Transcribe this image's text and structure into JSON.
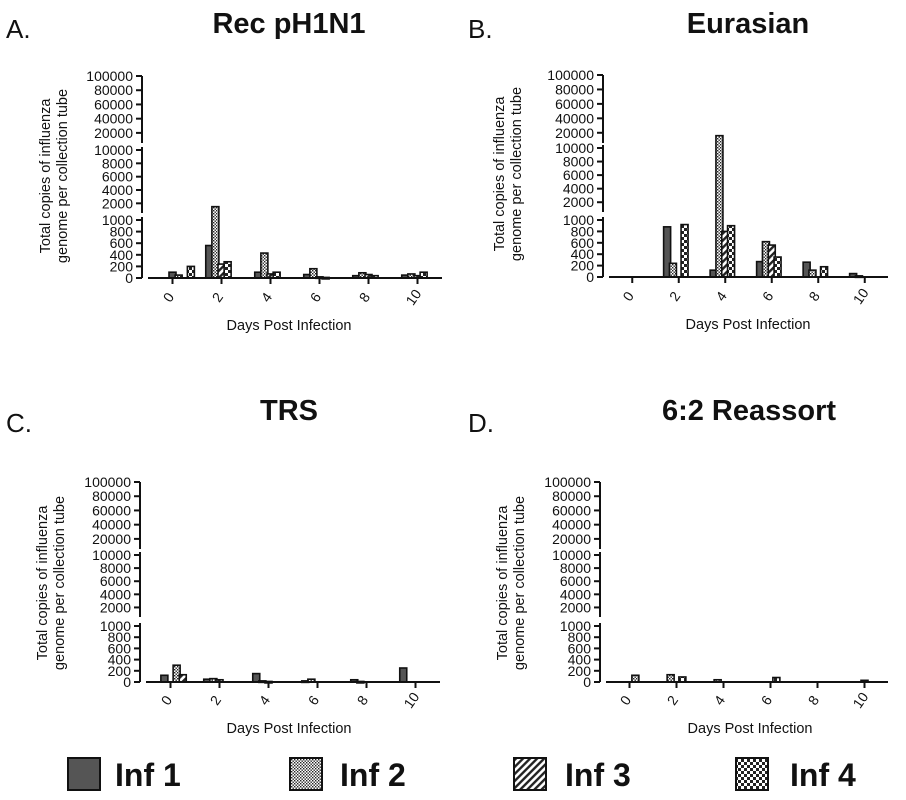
{
  "legend": [
    {
      "label": "Inf 1",
      "pattern": "solid"
    },
    {
      "label": "Inf 2",
      "pattern": "stipple"
    },
    {
      "label": "Inf 3",
      "pattern": "diagonal"
    },
    {
      "label": "Inf 4",
      "pattern": "checker"
    }
  ],
  "colors": {
    "bar_fill": "#555555",
    "stroke": "#111111"
  },
  "chart_data": [
    {
      "type": "bar",
      "panel": "A.",
      "title": "Rec pH1N1",
      "xlabel": "Days Post Infection",
      "ylabel": [
        "Total copies of influenza",
        "genome per collection tube"
      ],
      "x_ticks": [
        0,
        2,
        4,
        6,
        8,
        10
      ],
      "y_segments": [
        {
          "range": [
            0,
            1000
          ],
          "ticks": [
            0,
            200,
            400,
            600,
            800,
            1000
          ]
        },
        {
          "range": [
            1000,
            10000
          ],
          "ticks": [
            2000,
            4000,
            6000,
            8000,
            10000
          ]
        },
        {
          "range": [
            10000,
            100000
          ],
          "ticks": [
            20000,
            40000,
            60000,
            80000,
            100000
          ]
        }
      ],
      "series": [
        {
          "name": "Inf 1",
          "x": [
            0,
            1.5,
            3.5,
            5.5,
            7.5,
            9.5
          ],
          "values": [
            100,
            560,
            100,
            60,
            40,
            50
          ]
        },
        {
          "name": "Inf 2",
          "x": [
            0.25,
            1.75,
            3.75,
            5.75,
            7.75,
            9.75
          ],
          "values": [
            50,
            1500,
            430,
            160,
            90,
            70
          ]
        },
        {
          "name": "Inf 3",
          "x": [
            0.5,
            2,
            4,
            6,
            8,
            10
          ],
          "values": [
            0,
            240,
            70,
            20,
            60,
            40
          ]
        },
        {
          "name": "Inf 4",
          "x": [
            0.75,
            2.25,
            4.25,
            6.25,
            8.25,
            10.25
          ],
          "values": [
            200,
            280,
            100,
            10,
            40,
            100
          ]
        }
      ]
    },
    {
      "type": "bar",
      "panel": "B.",
      "title": "Eurasian",
      "xlabel": "Days Post Infection",
      "ylabel": [
        "Total copies of influenza",
        "genome per collection tube"
      ],
      "x_ticks": [
        0,
        2,
        4,
        6,
        8,
        10
      ],
      "y_segments": [
        {
          "range": [
            0,
            1000
          ],
          "ticks": [
            0,
            200,
            400,
            600,
            800,
            1000
          ]
        },
        {
          "range": [
            1000,
            10000
          ],
          "ticks": [
            2000,
            4000,
            6000,
            8000,
            10000
          ]
        },
        {
          "range": [
            10000,
            100000
          ],
          "ticks": [
            20000,
            40000,
            60000,
            80000,
            100000
          ]
        }
      ],
      "series": [
        {
          "name": "Inf 1",
          "x": [
            0,
            1.5,
            3.5,
            5.5,
            7.5,
            9.5
          ],
          "values": [
            0,
            880,
            120,
            270,
            260,
            60
          ]
        },
        {
          "name": "Inf 2",
          "x": [
            0.25,
            1.75,
            3.75,
            5.75,
            7.75,
            9.75
          ],
          "values": [
            0,
            240,
            16000,
            620,
            120,
            20
          ]
        },
        {
          "name": "Inf 3",
          "x": [
            0.5,
            2,
            4,
            6,
            8,
            10
          ],
          "values": [
            0,
            0,
            800,
            560,
            0,
            0
          ]
        },
        {
          "name": "Inf 4",
          "x": [
            0.75,
            2.25,
            4.25,
            6.25,
            8.25,
            10.25
          ],
          "values": [
            0,
            920,
            900,
            350,
            180,
            0
          ]
        }
      ]
    },
    {
      "type": "bar",
      "panel": "C.",
      "title": "TRS",
      "xlabel": "Days Post Infection",
      "ylabel": [
        "Total copies of influenza",
        "genome per collection tube"
      ],
      "x_ticks": [
        0,
        2,
        4,
        6,
        8,
        10
      ],
      "y_segments": [
        {
          "range": [
            0,
            1000
          ],
          "ticks": [
            0,
            200,
            400,
            600,
            800,
            1000
          ]
        },
        {
          "range": [
            1000,
            10000
          ],
          "ticks": [
            2000,
            4000,
            6000,
            8000,
            10000
          ]
        },
        {
          "range": [
            10000,
            100000
          ],
          "ticks": [
            20000,
            40000,
            60000,
            80000,
            100000
          ]
        }
      ],
      "series": [
        {
          "name": "Inf 1",
          "x": [
            -0.25,
            1.5,
            3.5,
            5.5,
            7.5,
            9.5
          ],
          "values": [
            120,
            50,
            150,
            20,
            40,
            250
          ]
        },
        {
          "name": "Inf 2",
          "x": [
            0.25,
            1.75,
            3.75,
            5.75,
            7.75,
            9.75
          ],
          "values": [
            300,
            60,
            20,
            50,
            10,
            0
          ]
        },
        {
          "name": "Inf 3",
          "x": [
            0.5,
            2,
            4,
            6,
            8,
            10
          ],
          "values": [
            130,
            40,
            10,
            0,
            0,
            0
          ]
        },
        {
          "name": "Inf 4",
          "x": [
            0.75,
            2.25,
            4.25,
            6.25,
            8.25,
            10.25
          ],
          "values": [
            0,
            0,
            0,
            0,
            0,
            0
          ]
        }
      ]
    },
    {
      "type": "bar",
      "panel": "D.",
      "title": "6:2 Reassort",
      "xlabel": "Days Post Infection",
      "ylabel": [
        "Total copies of influenza",
        "genome per collection tube"
      ],
      "x_ticks": [
        0,
        2,
        4,
        6,
        8,
        10
      ],
      "y_segments": [
        {
          "range": [
            0,
            1000
          ],
          "ticks": [
            0,
            200,
            400,
            600,
            800,
            1000
          ]
        },
        {
          "range": [
            1000,
            10000
          ],
          "ticks": [
            2000,
            4000,
            6000,
            8000,
            10000
          ]
        },
        {
          "range": [
            10000,
            100000
          ],
          "ticks": [
            20000,
            40000,
            60000,
            80000,
            100000
          ]
        }
      ],
      "series": [
        {
          "name": "Inf 1",
          "x": [
            0,
            1.5,
            3.5,
            5.5,
            7.5,
            9.5
          ],
          "values": [
            0,
            0,
            0,
            0,
            0,
            0
          ]
        },
        {
          "name": "Inf 2",
          "x": [
            0.25,
            1.75,
            3.75,
            5.75,
            7.75,
            9.75
          ],
          "values": [
            120,
            130,
            40,
            0,
            0,
            0
          ]
        },
        {
          "name": "Inf 3",
          "x": [
            0.5,
            2,
            4,
            6,
            8,
            10
          ],
          "values": [
            0,
            0,
            0,
            0,
            0,
            30
          ]
        },
        {
          "name": "Inf 4",
          "x": [
            0.75,
            2.25,
            4.25,
            6.25,
            8.25,
            10.25
          ],
          "values": [
            0,
            90,
            0,
            80,
            0,
            0
          ]
        }
      ]
    }
  ]
}
